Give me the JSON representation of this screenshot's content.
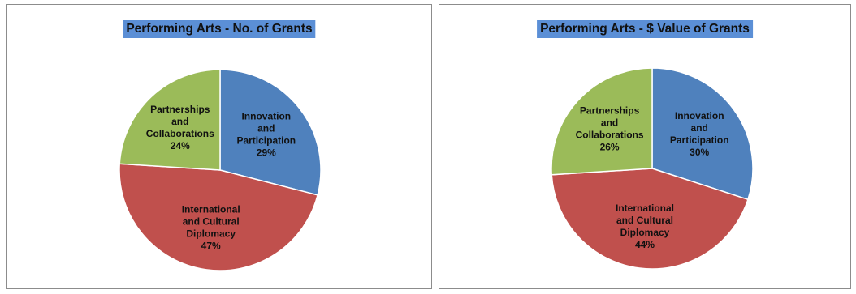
{
  "colors": {
    "blue": "#4f81bd",
    "red": "#c0504d",
    "green": "#9bbb59",
    "title_bg": "#5b8fd6"
  },
  "chart_data": [
    {
      "type": "pie",
      "title": "Performing Arts - No. of Grants",
      "slices": [
        {
          "label": [
            "Innovation",
            "and",
            "Participation"
          ],
          "value": 29,
          "value_label": "29%",
          "color": "#4f81bd"
        },
        {
          "label": [
            "International",
            "and Cultural",
            "Diplomacy"
          ],
          "value": 47,
          "value_label": "47%",
          "color": "#c0504d"
        },
        {
          "label": [
            "Partnerships",
            "and",
            "Collaborations"
          ],
          "value": 24,
          "value_label": "24%",
          "color": "#9bbb59"
        }
      ]
    },
    {
      "type": "pie",
      "title": "Performing Arts - $ Value of Grants",
      "slices": [
        {
          "label": [
            "Innovation",
            "and",
            "Participation"
          ],
          "value": 30,
          "value_label": "30%",
          "color": "#4f81bd"
        },
        {
          "label": [
            "International",
            "and Cultural",
            "Diplomacy"
          ],
          "value": 44,
          "value_label": "44%",
          "color": "#c0504d"
        },
        {
          "label": [
            "Partnerships",
            "and",
            "Collaborations"
          ],
          "value": 26,
          "value_label": "26%",
          "color": "#9bbb59"
        }
      ]
    }
  ]
}
